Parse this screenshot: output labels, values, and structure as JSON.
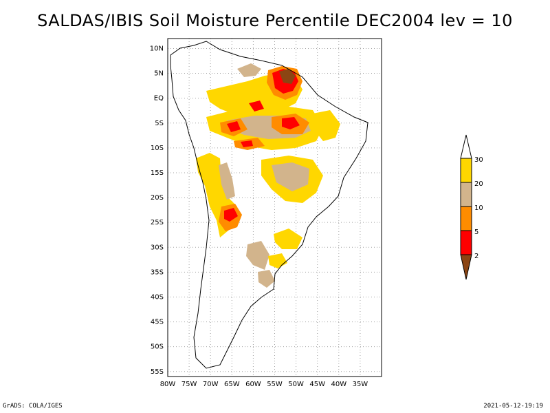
{
  "title": "SALDAS/IBIS Soil Moisture Percentile DEC2004 lev = 10",
  "map": {
    "lon_range": [
      -80,
      -30
    ],
    "lat_range": [
      -56,
      12
    ],
    "lat_ticks": [
      "10N",
      "5N",
      "EQ",
      "5S",
      "10S",
      "15S",
      "20S",
      "25S",
      "30S",
      "35S",
      "40S",
      "45S",
      "50S",
      "55S"
    ],
    "lon_ticks": [
      "80W",
      "75W",
      "70W",
      "65W",
      "60W",
      "55W",
      "50W",
      "45W",
      "40W",
      "35W"
    ],
    "grid": "dotted",
    "colors": {
      "frame": "#000000",
      "grid": "#a0a0a0",
      "coast": "#000000"
    }
  },
  "legend": {
    "levels": [
      "2",
      "5",
      "10",
      "20",
      "30"
    ],
    "colors": {
      "below_2": "#8b4513",
      "2_5": "#ff0000",
      "5_10": "#ff8c00",
      "10_20": "#d2b48c",
      "20_30": "#ffd700",
      "above_30": "#ffffff"
    }
  },
  "footer": {
    "left": "GrADS: COLA/IGES",
    "right": "2021-05-12-19:19"
  }
}
